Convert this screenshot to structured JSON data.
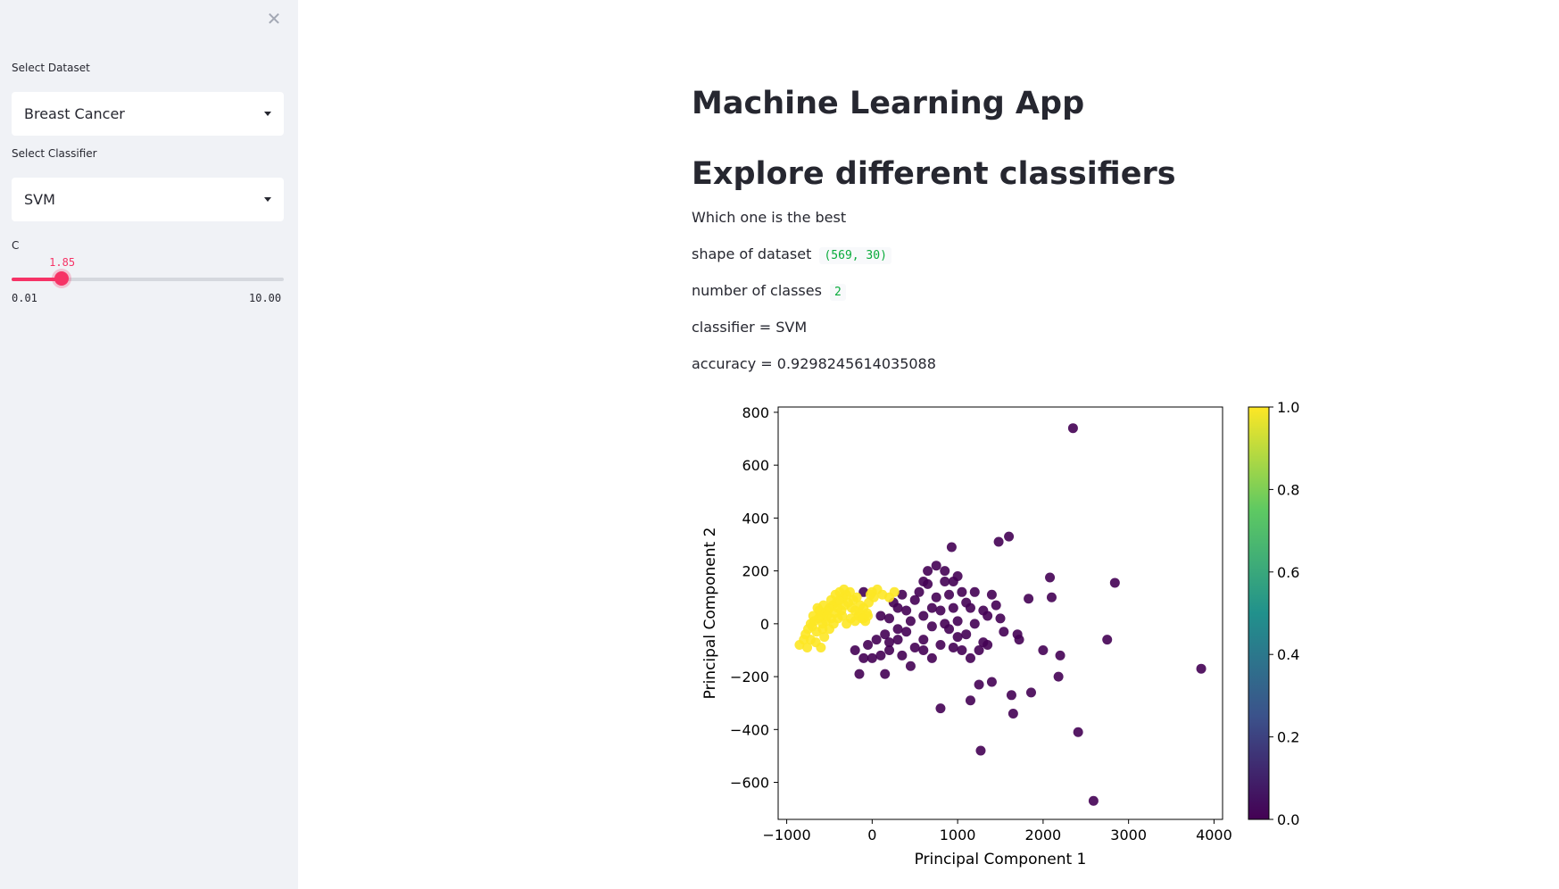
{
  "sidebar": {
    "close_icon": "close-icon",
    "dataset_label": "Select Dataset",
    "dataset_value": "Breast Cancer",
    "classifier_label": "Select Classifier",
    "classifier_value": "SVM",
    "c_label": "C",
    "c_value_text": "1.85",
    "c_value": 1.85,
    "c_min_text": "0.01",
    "c_max_text": "10.00",
    "c_min": 0.01,
    "c_max": 10.0,
    "accent_color": "#f63366"
  },
  "main": {
    "title": "Machine Learning App",
    "subtitle": "Explore different classifiers",
    "description": "Which one is the best",
    "shape_label": "shape of dataset",
    "shape_value": "(569, 30)",
    "classes_label": "number of classes",
    "classes_value": "2",
    "classifier_line": "classifier = SVM",
    "accuracy_line": "accuracy = 0.9298245614035088"
  },
  "chart_data": {
    "type": "scatter",
    "xlabel": "Principal Component 1",
    "ylabel": "Principal Component 2",
    "xlim": [
      -1100,
      4100
    ],
    "ylim": [
      -740,
      820
    ],
    "xticks": [
      -1000,
      0,
      1000,
      2000,
      3000,
      4000
    ],
    "xtick_labels": [
      "−1000",
      "0",
      "1000",
      "2000",
      "3000",
      "4000"
    ],
    "yticks": [
      -600,
      -400,
      -200,
      0,
      200,
      400,
      600,
      800
    ],
    "ytick_labels": [
      "−600",
      "−400",
      "−200",
      "0",
      "200",
      "400",
      "600",
      "800"
    ],
    "colorbar": {
      "min": 0.0,
      "max": 1.0,
      "ticks": [
        0.0,
        0.2,
        0.4,
        0.6,
        0.8,
        1.0
      ],
      "tick_labels": [
        "0.0",
        "0.2",
        "0.4",
        "0.6",
        "0.8",
        "1.0"
      ],
      "colormap": "viridis"
    },
    "series": [
      {
        "class": 0,
        "color": "#440154",
        "points": [
          [
            2350,
            740
          ],
          [
            1600,
            330
          ],
          [
            1480,
            310
          ],
          [
            930,
            290
          ],
          [
            2080,
            175
          ],
          [
            2840,
            155
          ],
          [
            2100,
            100
          ],
          [
            1830,
            95
          ],
          [
            1400,
            110
          ],
          [
            1200,
            120
          ],
          [
            950,
            160
          ],
          [
            850,
            200
          ],
          [
            750,
            220
          ],
          [
            650,
            200
          ],
          [
            1100,
            80
          ],
          [
            1300,
            50
          ],
          [
            1500,
            20
          ],
          [
            1700,
            -40
          ],
          [
            2750,
            -60
          ],
          [
            1720,
            -60
          ],
          [
            2000,
            -100
          ],
          [
            2200,
            -120
          ],
          [
            1300,
            -70
          ],
          [
            1100,
            -40
          ],
          [
            950,
            -90
          ],
          [
            800,
            -80
          ],
          [
            600,
            -60
          ],
          [
            400,
            -30
          ],
          [
            300,
            -60
          ],
          [
            200,
            -100
          ],
          [
            100,
            -120
          ],
          [
            0,
            -130
          ],
          [
            -100,
            -130
          ],
          [
            -200,
            -100
          ],
          [
            -150,
            -190
          ],
          [
            150,
            -190
          ],
          [
            350,
            -120
          ],
          [
            450,
            -160
          ],
          [
            700,
            -130
          ],
          [
            1150,
            -130
          ],
          [
            1250,
            -100
          ],
          [
            1350,
            -80
          ],
          [
            1540,
            -30
          ],
          [
            1000,
            -50
          ],
          [
            1250,
            -230
          ],
          [
            1400,
            -220
          ],
          [
            1860,
            -260
          ],
          [
            1630,
            -270
          ],
          [
            2180,
            -200
          ],
          [
            3850,
            -170
          ],
          [
            800,
            -320
          ],
          [
            1150,
            -290
          ],
          [
            1650,
            -340
          ],
          [
            2410,
            -410
          ],
          [
            1270,
            -480
          ],
          [
            2590,
            -670
          ],
          [
            300,
            60
          ],
          [
            500,
            90
          ],
          [
            600,
            30
          ],
          [
            700,
            -10
          ],
          [
            800,
            50
          ],
          [
            900,
            110
          ],
          [
            1000,
            10
          ],
          [
            1200,
            0
          ],
          [
            200,
            20
          ],
          [
            400,
            50
          ],
          [
            550,
            120
          ],
          [
            650,
            150
          ],
          [
            300,
            -20
          ],
          [
            500,
            -90
          ],
          [
            750,
            100
          ],
          [
            850,
            0
          ],
          [
            950,
            60
          ],
          [
            1050,
            120
          ],
          [
            450,
            10
          ],
          [
            250,
            80
          ],
          [
            100,
            30
          ],
          [
            50,
            -60
          ],
          [
            -50,
            -80
          ],
          [
            150,
            -40
          ],
          [
            350,
            110
          ],
          [
            1050,
            -100
          ],
          [
            900,
            -20
          ],
          [
            700,
            60
          ],
          [
            600,
            -100
          ],
          [
            1000,
            180
          ],
          [
            1150,
            60
          ],
          [
            -100,
            120
          ],
          [
            600,
            160
          ],
          [
            850,
            160
          ],
          [
            1350,
            30
          ],
          [
            1450,
            70
          ],
          [
            200,
            -70
          ]
        ]
      },
      {
        "class": 1,
        "color": "#fde725",
        "points": [
          [
            -850,
            -80
          ],
          [
            -800,
            -60
          ],
          [
            -780,
            -40
          ],
          [
            -750,
            -20
          ],
          [
            -720,
            -60
          ],
          [
            -700,
            -10
          ],
          [
            -680,
            10
          ],
          [
            -650,
            -30
          ],
          [
            -630,
            20
          ],
          [
            -600,
            30
          ],
          [
            -580,
            0
          ],
          [
            -560,
            40
          ],
          [
            -540,
            10
          ],
          [
            -520,
            50
          ],
          [
            -500,
            60
          ],
          [
            -480,
            20
          ],
          [
            -460,
            70
          ],
          [
            -440,
            40
          ],
          [
            -420,
            80
          ],
          [
            -400,
            60
          ],
          [
            -380,
            90
          ],
          [
            -360,
            50
          ],
          [
            -340,
            100
          ],
          [
            -320,
            70
          ],
          [
            -300,
            110
          ],
          [
            -280,
            80
          ],
          [
            -260,
            120
          ],
          [
            -240,
            60
          ],
          [
            -220,
            90
          ],
          [
            -200,
            50
          ],
          [
            -180,
            100
          ],
          [
            -160,
            30
          ],
          [
            -140,
            70
          ],
          [
            -120,
            20
          ],
          [
            -100,
            60
          ],
          [
            -80,
            10
          ],
          [
            -60,
            40
          ],
          [
            -40,
            80
          ],
          [
            -20,
            110
          ],
          [
            0,
            120
          ],
          [
            20,
            100
          ],
          [
            60,
            130
          ],
          [
            120,
            110
          ],
          [
            200,
            100
          ],
          [
            260,
            120
          ],
          [
            -600,
            -90
          ],
          [
            -660,
            -70
          ],
          [
            -560,
            -50
          ],
          [
            -500,
            -20
          ],
          [
            -450,
            0
          ],
          [
            -400,
            20
          ],
          [
            -350,
            30
          ],
          [
            -300,
            0
          ],
          [
            -250,
            20
          ],
          [
            -200,
            10
          ],
          [
            -150,
            40
          ],
          [
            -100,
            20
          ],
          [
            -50,
            30
          ],
          [
            -620,
            50
          ],
          [
            -570,
            70
          ],
          [
            -530,
            30
          ],
          [
            -480,
            90
          ],
          [
            -430,
            110
          ],
          [
            -380,
            120
          ],
          [
            -330,
            130
          ],
          [
            -580,
            -20
          ],
          [
            -720,
            0
          ],
          [
            -760,
            -90
          ],
          [
            -690,
            30
          ],
          [
            -640,
            60
          ]
        ]
      }
    ]
  }
}
